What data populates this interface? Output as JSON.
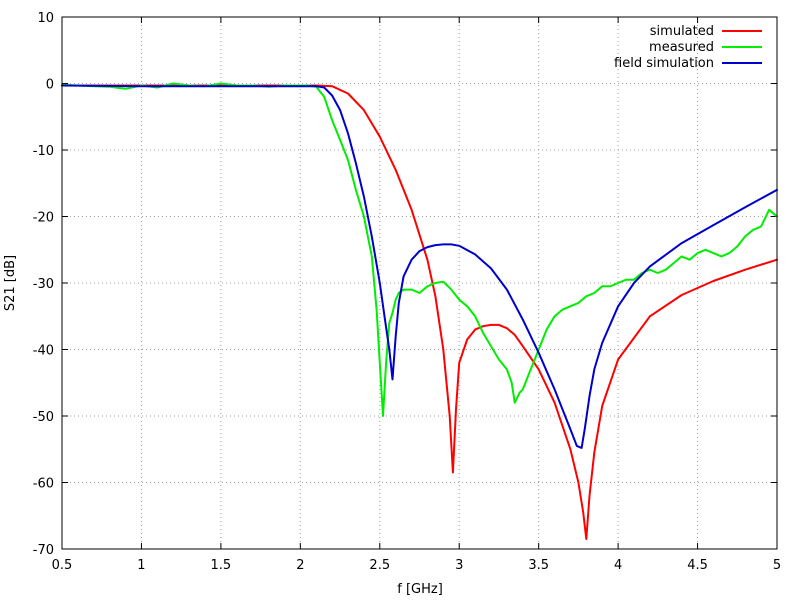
{
  "chart_data": {
    "type": "line",
    "title": "",
    "xlabel": "f [GHz]",
    "ylabel": "S21 [dB]",
    "xlim": [
      0.5,
      5
    ],
    "ylim": [
      -70,
      10
    ],
    "xticks": [
      0.5,
      1,
      1.5,
      2,
      2.5,
      3,
      3.5,
      4,
      4.5,
      5
    ],
    "xtick_labels": [
      "0.5",
      "1",
      "1.5",
      "2",
      "2.5",
      "3",
      "3.5",
      "4",
      "4.5",
      "5"
    ],
    "yticks": [
      10,
      0,
      -10,
      -20,
      -30,
      -40,
      -50,
      -60,
      -70
    ],
    "ytick_labels": [
      "10",
      "0",
      "-10",
      "-20",
      "-30",
      "-40",
      "-50",
      "-60",
      "-70"
    ],
    "grid": true,
    "legend": "top-right",
    "series": [
      {
        "name": "simulated",
        "color": "#ff0000",
        "x": [
          0.5,
          1.0,
          1.5,
          2.0,
          2.1,
          2.2,
          2.3,
          2.4,
          2.5,
          2.6,
          2.7,
          2.8,
          2.85,
          2.9,
          2.94,
          2.96,
          2.98,
          3.0,
          3.05,
          3.1,
          3.15,
          3.2,
          3.25,
          3.3,
          3.35,
          3.4,
          3.5,
          3.6,
          3.7,
          3.75,
          3.78,
          3.8,
          3.82,
          3.85,
          3.9,
          4.0,
          4.2,
          4.4,
          4.6,
          4.8,
          5.0
        ],
        "y": [
          -0.3,
          -0.3,
          -0.3,
          -0.3,
          -0.3,
          -0.4,
          -1.5,
          -4.0,
          -8.0,
          -13.0,
          -19.0,
          -26.5,
          -32.0,
          -40.0,
          -50.0,
          -58.5,
          -49.0,
          -42.0,
          -38.5,
          -37.0,
          -36.5,
          -36.3,
          -36.3,
          -36.8,
          -37.8,
          -39.5,
          -43.0,
          -48.0,
          -55.0,
          -60.0,
          -64.5,
          -68.5,
          -62.0,
          -55.5,
          -48.5,
          -41.5,
          -35.0,
          -31.8,
          -29.7,
          -28.0,
          -26.5
        ]
      },
      {
        "name": "measured",
        "color": "#00ee00",
        "x": [
          0.5,
          0.6,
          0.7,
          0.8,
          0.9,
          1.0,
          1.1,
          1.2,
          1.3,
          1.4,
          1.5,
          1.6,
          1.7,
          1.8,
          1.9,
          2.0,
          2.05,
          2.1,
          2.15,
          2.2,
          2.25,
          2.3,
          2.35,
          2.4,
          2.45,
          2.48,
          2.5,
          2.52,
          2.54,
          2.56,
          2.58,
          2.6,
          2.62,
          2.65,
          2.7,
          2.75,
          2.8,
          2.85,
          2.9,
          2.95,
          3.0,
          3.05,
          3.1,
          3.15,
          3.2,
          3.25,
          3.3,
          3.33,
          3.35,
          3.38,
          3.4,
          3.45,
          3.5,
          3.55,
          3.6,
          3.65,
          3.7,
          3.75,
          3.8,
          3.85,
          3.9,
          3.95,
          4.0,
          4.05,
          4.1,
          4.15,
          4.2,
          4.25,
          4.3,
          4.35,
          4.4,
          4.45,
          4.5,
          4.55,
          4.6,
          4.65,
          4.7,
          4.75,
          4.8,
          4.85,
          4.9,
          4.95,
          5.0
        ],
        "y": [
          -0.2,
          -0.3,
          -0.4,
          -0.5,
          -0.8,
          -0.3,
          -0.6,
          0.0,
          -0.3,
          -0.4,
          0.0,
          -0.3,
          -0.3,
          -0.5,
          -0.3,
          -0.3,
          -0.3,
          -0.5,
          -2.0,
          -5.5,
          -8.5,
          -11.5,
          -16.0,
          -20.0,
          -26.0,
          -34.0,
          -42.0,
          -50.0,
          -42.0,
          -36.0,
          -34.5,
          -32.5,
          -31.5,
          -31.0,
          -31.0,
          -31.5,
          -30.5,
          -30.0,
          -29.8,
          -31.0,
          -32.5,
          -33.5,
          -35.0,
          -37.5,
          -39.5,
          -41.5,
          -43.0,
          -45.0,
          -48.0,
          -46.5,
          -46.0,
          -43.0,
          -40.0,
          -37.0,
          -35.0,
          -34.0,
          -33.5,
          -33.0,
          -32.0,
          -31.5,
          -30.5,
          -30.5,
          -30.0,
          -29.5,
          -29.5,
          -28.5,
          -28.0,
          -28.5,
          -28.0,
          -27.0,
          -26.0,
          -26.5,
          -25.5,
          -25.0,
          -25.5,
          -26.0,
          -25.5,
          -24.5,
          -23.0,
          -22.0,
          -21.5,
          -19.0,
          -20.0
        ]
      },
      {
        "name": "field simulation",
        "color": "#0000cc",
        "x": [
          0.5,
          1.0,
          1.5,
          2.0,
          2.1,
          2.15,
          2.2,
          2.25,
          2.3,
          2.35,
          2.4,
          2.45,
          2.5,
          2.53,
          2.56,
          2.58,
          2.6,
          2.62,
          2.65,
          2.7,
          2.75,
          2.8,
          2.85,
          2.9,
          2.95,
          3.0,
          3.1,
          3.2,
          3.3,
          3.4,
          3.5,
          3.6,
          3.65,
          3.7,
          3.74,
          3.77,
          3.79,
          3.82,
          3.85,
          3.9,
          4.0,
          4.1,
          4.2,
          4.4,
          4.6,
          4.8,
          5.0
        ],
        "y": [
          -0.3,
          -0.4,
          -0.4,
          -0.4,
          -0.4,
          -0.6,
          -1.8,
          -4.0,
          -7.5,
          -12.0,
          -17.0,
          -23.0,
          -30.0,
          -35.0,
          -40.0,
          -44.5,
          -38.0,
          -33.0,
          -29.0,
          -26.5,
          -25.2,
          -24.6,
          -24.3,
          -24.2,
          -24.2,
          -24.4,
          -25.7,
          -27.8,
          -31.0,
          -35.5,
          -40.5,
          -46.0,
          -49.0,
          -52.0,
          -54.5,
          -54.8,
          -52.0,
          -47.0,
          -43.0,
          -39.0,
          -33.5,
          -30.0,
          -27.5,
          -24.0,
          -21.3,
          -18.6,
          -16.0
        ]
      }
    ]
  }
}
